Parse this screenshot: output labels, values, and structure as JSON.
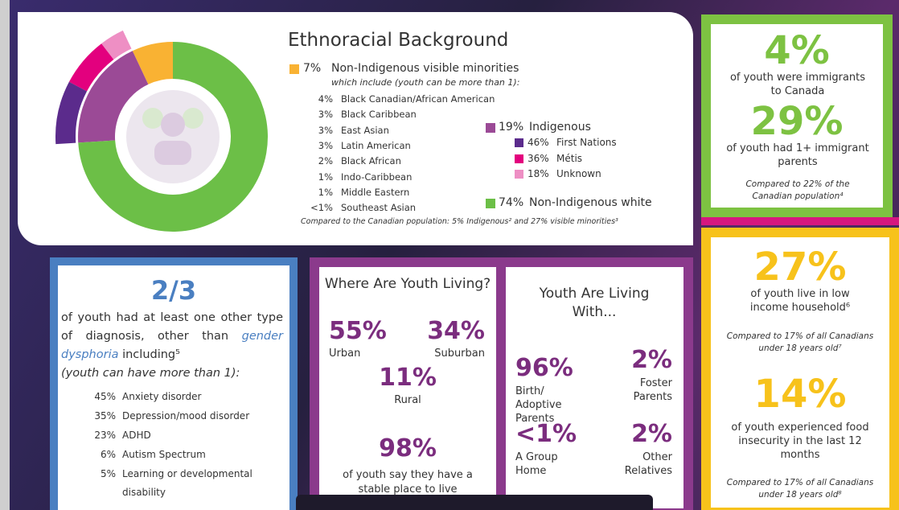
{
  "ethnoracial": {
    "title": "Ethnoracial Background",
    "visible_minorities": {
      "share": {
        "value": 7,
        "label": "7%"
      },
      "label": "Non-Indigenous visible minorities",
      "note": "which include (youth can be more than 1):",
      "items": [
        {
          "pct": "4%",
          "label": "Black Canadian/African American"
        },
        {
          "pct": "3%",
          "label": "Black Caribbean"
        },
        {
          "pct": "3%",
          "label": "East Asian"
        },
        {
          "pct": "3%",
          "label": "Latin American"
        },
        {
          "pct": "2%",
          "label": "Black African"
        },
        {
          "pct": "1%",
          "label": "Indo-Caribbean"
        },
        {
          "pct": "1%",
          "label": "Middle Eastern"
        },
        {
          "pct": "<1%",
          "label": "Southeast Asian"
        }
      ]
    },
    "indigenous": {
      "share": {
        "value": 19,
        "label": "19%"
      },
      "label": "Indigenous",
      "items": [
        {
          "share": {
            "value": 46,
            "label": "46%"
          },
          "label": "First Nations"
        },
        {
          "share": {
            "value": 36,
            "label": "36%"
          },
          "label": "Métis"
        },
        {
          "share": {
            "value": 18,
            "label": "18%"
          },
          "label": "Unknown"
        }
      ]
    },
    "white": {
      "share": {
        "value": 74,
        "label": "74%"
      },
      "label": "Non-Indigenous white"
    },
    "footnote": "Compared to the Canadian population: 5% Indigenous² and 27% visible minorities³"
  },
  "immigration": {
    "stat1": "4%",
    "text1": "of youth were immigrants to Canada",
    "stat2": "29%",
    "text2": "of youth had 1+ immigrant parents",
    "note": "Compared to 22% of the Canadian population⁴"
  },
  "income": {
    "stat1": "27%",
    "text1": "of youth live in low income household⁶",
    "note1": "Compared to 17% of all Canadians under 18 years old⁷",
    "stat2": "14%",
    "text2": "of youth experienced food insecurity in the last 12 months",
    "note2": "Compared to 17% of all Canadians under 18 years old⁸"
  },
  "diagnosis": {
    "stat": "2/3",
    "text_before": "of youth had at least one other type of diagnosis, other than",
    "term": "gender dysphoria",
    "text_after": "including⁵",
    "note": "(youth can have more than 1):",
    "items": [
      {
        "pct": "45%",
        "label": "Anxiety disorder"
      },
      {
        "pct": "35%",
        "label": "Depression/mood disorder"
      },
      {
        "pct": "23%",
        "label": "ADHD"
      },
      {
        "pct": "6%",
        "label": "Autism Spectrum"
      },
      {
        "pct": "5%",
        "label": "Learning or developmental disability"
      }
    ]
  },
  "living_where": {
    "title": "Where Are Youth Living?",
    "items": [
      {
        "pct": "55%",
        "label": "Urban"
      },
      {
        "pct": "34%",
        "label": "Suburban"
      },
      {
        "pct": "11%",
        "label": "Rural"
      }
    ],
    "stable": {
      "pct": "98%",
      "label": "of youth say they have a stable place to live"
    }
  },
  "living_with": {
    "title": "Youth Are Living With...",
    "items": [
      {
        "pct": "96%",
        "label": "Birth/ Adoptive Parents"
      },
      {
        "pct": "2%",
        "label": "Foster Parents"
      },
      {
        "pct": "<1%",
        "label": "A Group Home"
      },
      {
        "pct": "2%",
        "label": "Other Relatives"
      }
    ]
  }
}
